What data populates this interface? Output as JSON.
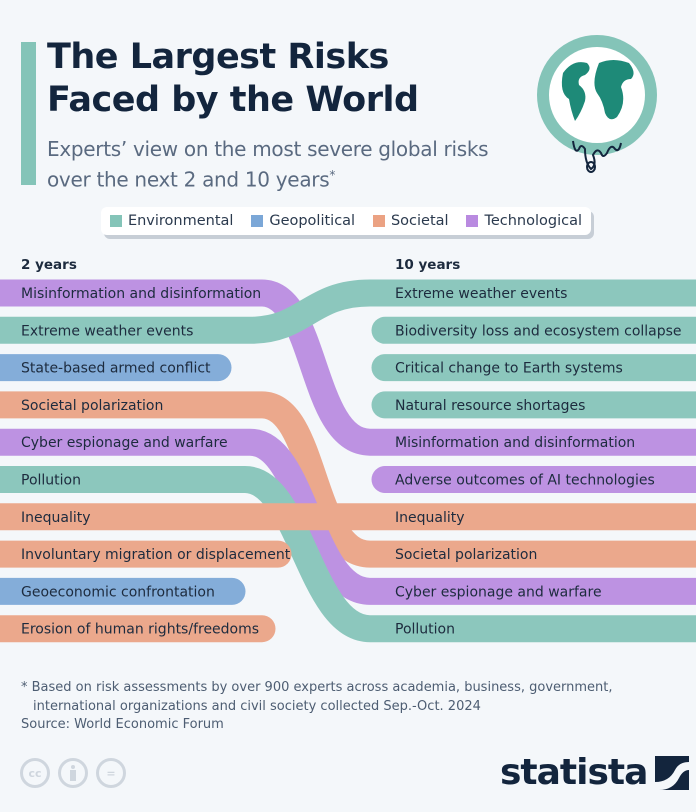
{
  "header": {
    "title_line1": "The Largest Risks",
    "title_line2": "Faced by the World",
    "subtitle_line1": "Experts’ view on the most severe global risks",
    "subtitle_line2": "over the next 2 and 10 years",
    "subtitle_mark": "*"
  },
  "legend": [
    {
      "label": "Environmental",
      "color": "#84c4b8"
    },
    {
      "label": "Geopolitical",
      "color": "#7ba7d7"
    },
    {
      "label": "Societal",
      "color": "#eba283"
    },
    {
      "label": "Technological",
      "color": "#b98ae0"
    }
  ],
  "chart_data": {
    "type": "bump",
    "columns": [
      "2 years",
      "10 years"
    ],
    "categories_colors": {
      "Environmental": "#84c4b8",
      "Geopolitical": "#7ba7d7",
      "Societal": "#eba283",
      "Technological": "#b98ae0"
    },
    "two_years": [
      {
        "rank": 1,
        "label": "Misinformation and disinformation",
        "category": "Technological"
      },
      {
        "rank": 2,
        "label": "Extreme weather events",
        "category": "Environmental"
      },
      {
        "rank": 3,
        "label": "State-based armed conflict",
        "category": "Geopolitical"
      },
      {
        "rank": 4,
        "label": "Societal polarization",
        "category": "Societal"
      },
      {
        "rank": 5,
        "label": "Cyber espionage and warfare",
        "category": "Technological"
      },
      {
        "rank": 6,
        "label": "Pollution",
        "category": "Environmental"
      },
      {
        "rank": 7,
        "label": "Inequality",
        "category": "Societal"
      },
      {
        "rank": 8,
        "label": "Involuntary migration or displacement",
        "category": "Societal"
      },
      {
        "rank": 9,
        "label": "Geoeconomic confrontation",
        "category": "Geopolitical"
      },
      {
        "rank": 10,
        "label": "Erosion of human rights/freedoms",
        "category": "Societal"
      }
    ],
    "ten_years": [
      {
        "rank": 1,
        "label": "Extreme weather events",
        "category": "Environmental"
      },
      {
        "rank": 2,
        "label": "Biodiversity loss and ecosystem collapse",
        "category": "Environmental"
      },
      {
        "rank": 3,
        "label": "Critical change to Earth systems",
        "category": "Environmental"
      },
      {
        "rank": 4,
        "label": "Natural resource shortages",
        "category": "Environmental"
      },
      {
        "rank": 5,
        "label": "Misinformation and disinformation",
        "category": "Technological"
      },
      {
        "rank": 6,
        "label": "Adverse outcomes of AI technologies",
        "category": "Technological"
      },
      {
        "rank": 7,
        "label": "Inequality",
        "category": "Societal"
      },
      {
        "rank": 8,
        "label": "Societal polarization",
        "category": "Societal"
      },
      {
        "rank": 9,
        "label": "Cyber espionage and warfare",
        "category": "Technological"
      },
      {
        "rank": 10,
        "label": "Pollution",
        "category": "Environmental"
      }
    ]
  },
  "footer": {
    "note_line1": "* Based on risk assessments by over 900 experts across academia, business, government,",
    "note_line2": "international organizations and civil society collected Sep.-Oct. 2024",
    "source": "Source: World Economic Forum",
    "cc_icons": [
      "cc-icon",
      "by-icon",
      "nd-icon"
    ],
    "cc_label": "cc",
    "nd_label": "=",
    "logo": "statista"
  }
}
